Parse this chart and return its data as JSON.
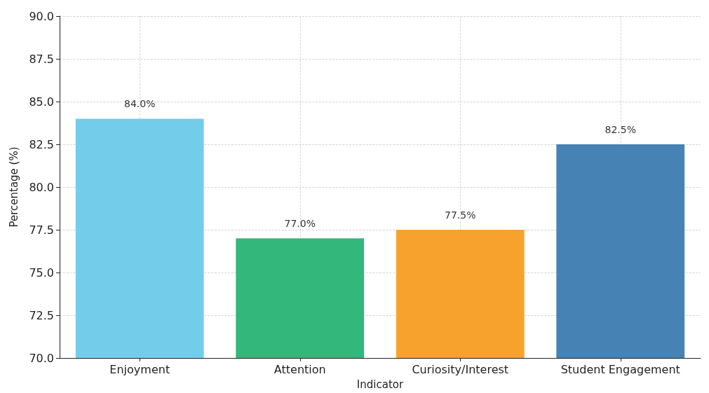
{
  "chart_data": {
    "type": "bar",
    "xlabel": "Indicator",
    "ylabel": "Percentage (%)",
    "categories": [
      "Enjoyment",
      "Attention",
      "Curiosity/Interest",
      "Student Engagement"
    ],
    "values": [
      84.0,
      77.0,
      77.5,
      82.5
    ],
    "colors": [
      "#73cdea",
      "#34b77a",
      "#f7a22c",
      "#4682b4"
    ],
    "value_labels": [
      "84.0%",
      "77.0%",
      "77.5%",
      "82.5%"
    ],
    "ylim": [
      70,
      90
    ],
    "yticks": [
      {
        "value": 70,
        "label": "70.0"
      },
      72.5,
      {
        "value": 75,
        "label": "75.0"
      },
      77.5,
      {
        "value": 80,
        "label": "80.0"
      },
      82.5,
      {
        "value": 85,
        "label": "85.0"
      },
      87.5,
      {
        "value": 90,
        "label": "90.0"
      }
    ],
    "grid": true
  }
}
